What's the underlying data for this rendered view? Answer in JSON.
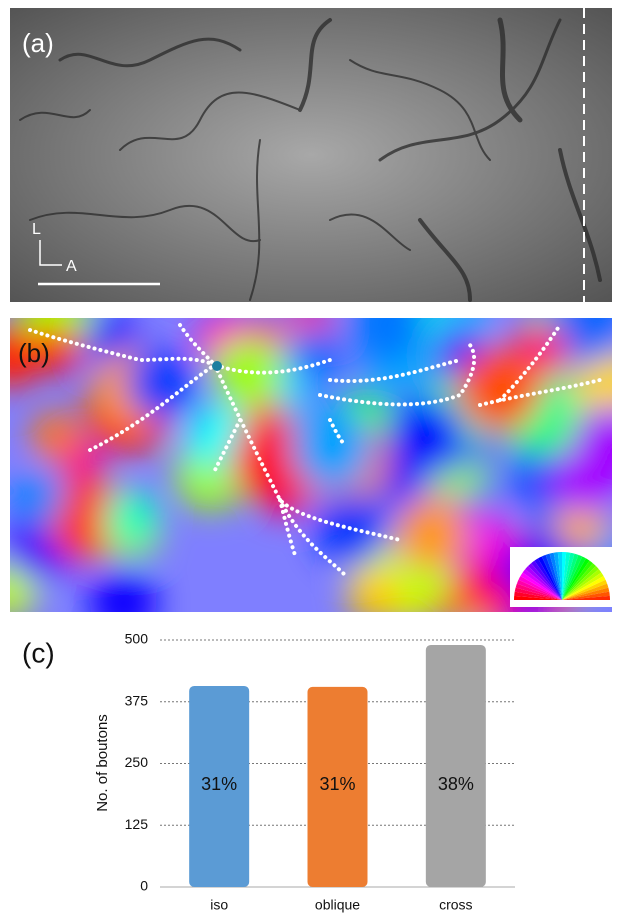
{
  "panel_labels": [
    "(a)",
    "(b)",
    "(c)"
  ],
  "orientation_labels": [
    "L",
    "A"
  ],
  "chart_data": {
    "type": "bar",
    "y_label": "No. of boutons",
    "categories": [
      "iso",
      "oblique",
      "cross"
    ],
    "values": [
      407,
      405,
      490
    ],
    "share_labels": [
      "31%",
      "31%",
      "38%"
    ],
    "colors": [
      "#5b9bd5",
      "#ed7d31",
      "#a5a5a5"
    ],
    "ylim": [
      0,
      500
    ],
    "yticks": [
      0,
      125,
      250,
      375,
      500
    ],
    "grid": true
  }
}
